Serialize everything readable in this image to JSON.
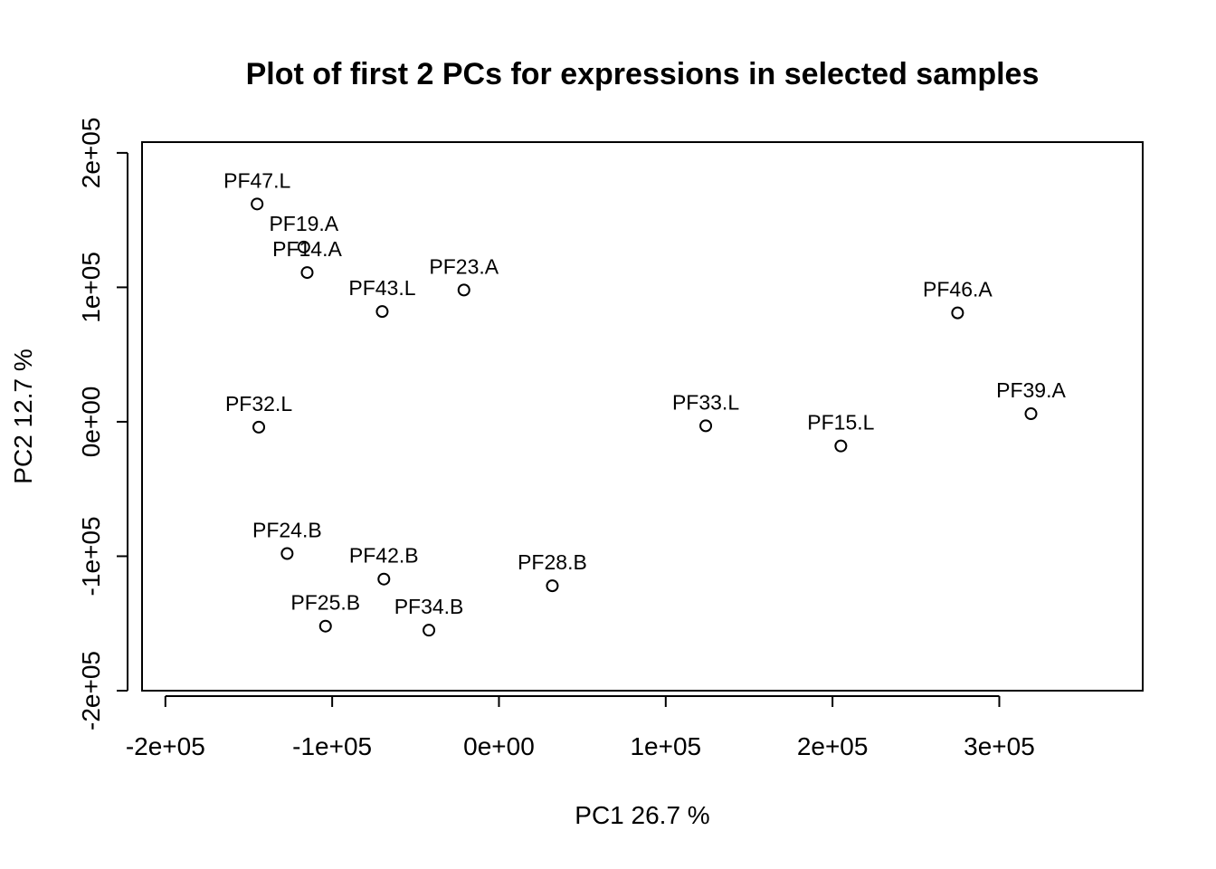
{
  "chart_data": {
    "type": "scatter",
    "title": "Plot of first 2 PCs for expressions in selected samples",
    "xlabel": "PC1 26.7 %",
    "ylabel": "PC2 12.7 %",
    "xlim": [
      -214000,
      386000
    ],
    "ylim": [
      -200000,
      208000
    ],
    "xticks": [
      -200000,
      -100000,
      0,
      100000,
      200000,
      300000
    ],
    "xtick_labels": [
      "-2e+05",
      "-1e+05",
      "0e+00",
      "1e+05",
      "2e+05",
      "3e+05"
    ],
    "yticks": [
      -200000,
      -100000,
      0,
      100000,
      200000
    ],
    "ytick_labels": [
      "-2e+05",
      "-1e+05",
      "0e+00",
      "1e+05",
      "2e+05"
    ],
    "points": [
      {
        "label": "PF47.L",
        "x": -145000,
        "y": 162000
      },
      {
        "label": "PF19.A",
        "x": -117000,
        "y": 130000
      },
      {
        "label": "PF14.A",
        "x": -115000,
        "y": 111000
      },
      {
        "label": "PF43.L",
        "x": -70000,
        "y": 82000
      },
      {
        "label": "PF23.A",
        "x": -21000,
        "y": 98000
      },
      {
        "label": "PF46.A",
        "x": 275000,
        "y": 81000
      },
      {
        "label": "PF32.L",
        "x": -144000,
        "y": -4000
      },
      {
        "label": "PF33.L",
        "x": 124000,
        "y": -3000
      },
      {
        "label": "PF15.L",
        "x": 205000,
        "y": -18000
      },
      {
        "label": "PF39.A",
        "x": 319000,
        "y": 6000
      },
      {
        "label": "PF24.B",
        "x": -127000,
        "y": -98000
      },
      {
        "label": "PF42.B",
        "x": -69000,
        "y": -117000
      },
      {
        "label": "PF28.B",
        "x": 32000,
        "y": -122000
      },
      {
        "label": "PF25.B",
        "x": -104000,
        "y": -152000
      },
      {
        "label": "PF34.B",
        "x": -42000,
        "y": -155000
      }
    ]
  }
}
